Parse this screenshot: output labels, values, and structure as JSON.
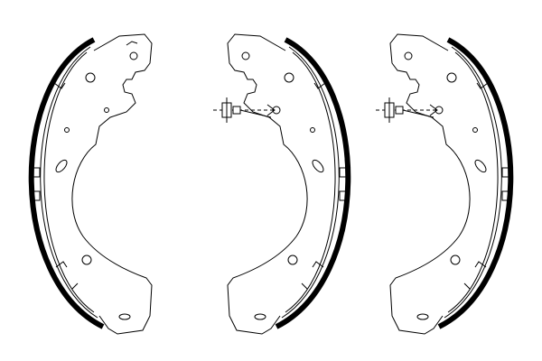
{
  "colors": {
    "background": "#ffffff",
    "line": "#000000",
    "lining": "#000000"
  },
  "parts": [
    {
      "name": "brake-shoe",
      "count": 3
    },
    {
      "name": "adjuster-lever",
      "count": 2
    }
  ]
}
